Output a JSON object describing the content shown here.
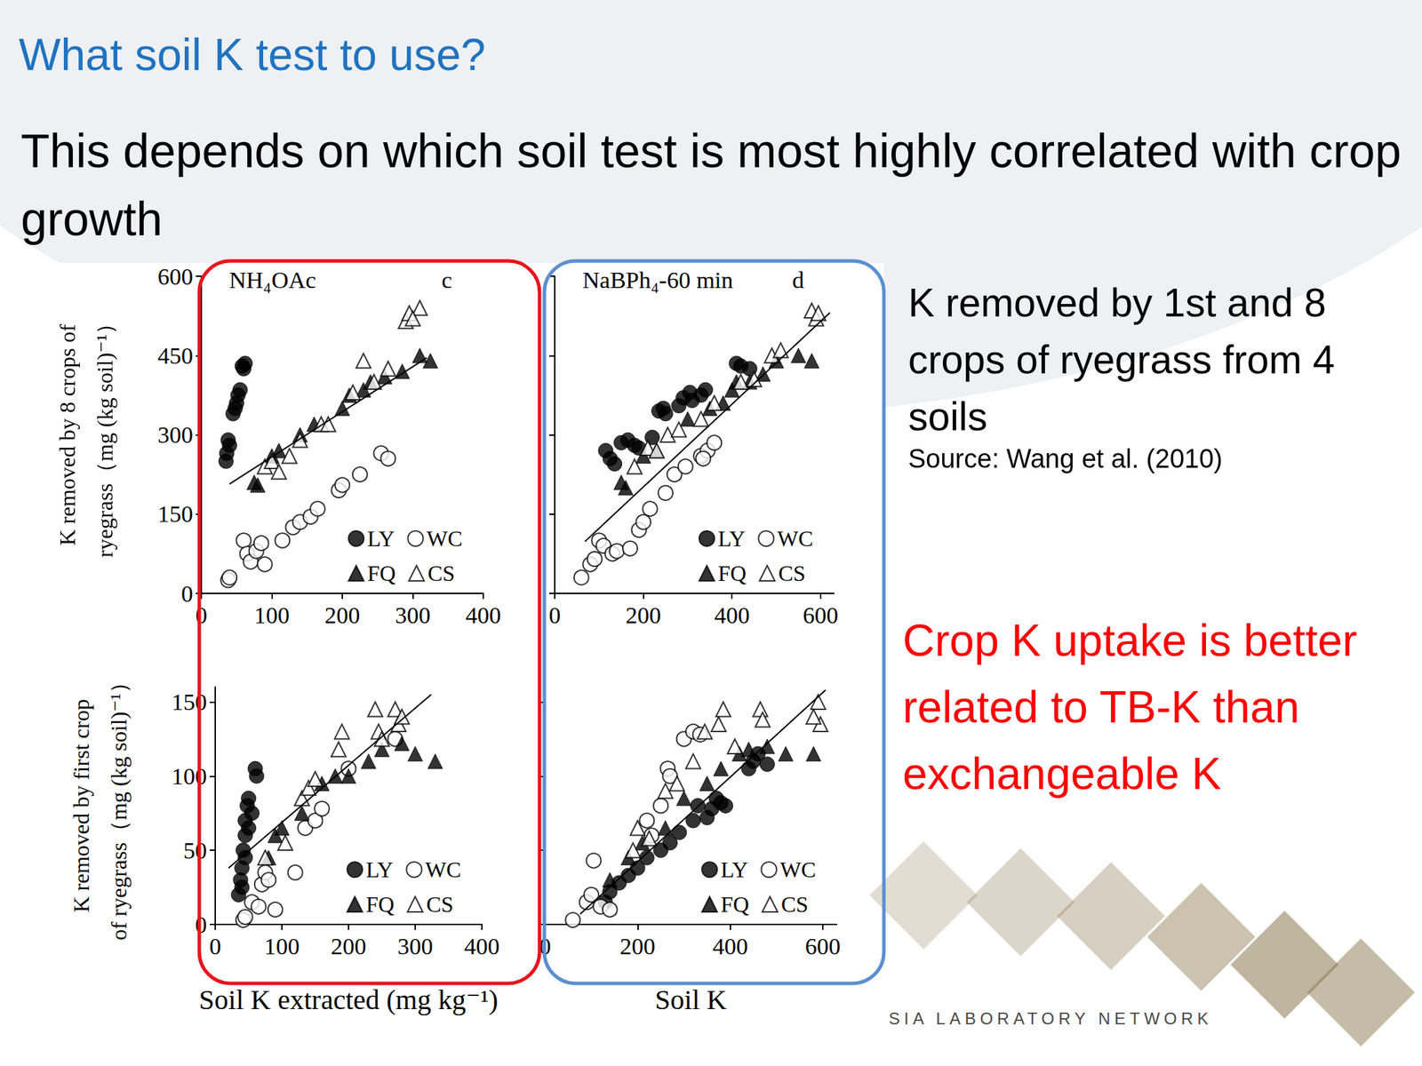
{
  "slide": {
    "title": "What soil K test to use?",
    "subtitle": "This depends on which soil test is most highly correlated with crop growth",
    "notes": [
      "K removed by 1st and 8 crops of ryegrass from 4 soils"
    ],
    "source": "Source: Wang et al. (2010)",
    "conclusion": "Crop K uptake is better related to TB-K than exchangeable K",
    "footer": "SIA LABORATORY NETWORK"
  },
  "chart_data": [
    {
      "type": "scatter",
      "title": "NH₄OAc",
      "panel_label": "c",
      "ylabel": [
        "K removed by 8 crops of",
        "ryegrass（mg (kg soil)⁻¹）"
      ],
      "xlim": [
        0,
        400
      ],
      "xticks": [
        0,
        100,
        200,
        300,
        400
      ],
      "ylim": [
        0,
        600
      ],
      "yticks": [
        0,
        150,
        300,
        450,
        600
      ],
      "grid": false,
      "legend": "lower right",
      "series": [
        {
          "name": "LY",
          "color": "#000000",
          "marker": "circle",
          "x": [
            35,
            36,
            38,
            40,
            45,
            48,
            50,
            52,
            55,
            58,
            62,
            60
          ],
          "values": [
            250,
            265,
            290,
            280,
            340,
            350,
            360,
            375,
            385,
            430,
            435,
            425
          ]
        },
        {
          "name": "WC",
          "color": "#000000",
          "marker": "open_circle",
          "x": [
            38,
            40,
            60,
            65,
            70,
            78,
            85,
            90,
            115,
            130,
            140,
            155,
            165,
            195,
            200,
            225,
            255,
            265
          ],
          "values": [
            25,
            30,
            100,
            75,
            60,
            80,
            95,
            55,
            100,
            125,
            135,
            145,
            160,
            195,
            205,
            225,
            265,
            255
          ]
        },
        {
          "name": "FQ",
          "color": "#000000",
          "marker": "triangle",
          "x": [
            75,
            80,
            100,
            110,
            140,
            160,
            200,
            210,
            230,
            240,
            260,
            285,
            310,
            325
          ],
          "values": [
            210,
            205,
            260,
            270,
            300,
            320,
            350,
            375,
            385,
            400,
            410,
            420,
            450,
            440
          ]
        },
        {
          "name": "CS",
          "color": "#000000",
          "marker": "open_triangle",
          "x": [
            90,
            100,
            110,
            125,
            140,
            170,
            180,
            215,
            230,
            245,
            265,
            290,
            295,
            310,
            300
          ],
          "values": [
            240,
            250,
            230,
            260,
            290,
            320,
            320,
            380,
            440,
            400,
            425,
            515,
            530,
            540,
            520
          ]
        }
      ],
      "trend_line": {
        "x": [
          40,
          320
        ],
        "y": [
          207,
          446
        ]
      }
    },
    {
      "type": "scatter",
      "title": "NaBPh₄-60 min",
      "panel_label": "d",
      "xlim": [
        0,
        630
      ],
      "xticks": [
        0,
        200,
        400,
        600
      ],
      "ylim": [
        0,
        600
      ],
      "yticks": [
        0,
        150,
        300,
        450,
        600
      ],
      "grid": false,
      "legend": "lower right",
      "tick_labels": "x",
      "series": [
        {
          "name": "LY",
          "color": "#000000",
          "marker": "circle",
          "x": [
            115,
            125,
            135,
            150,
            165,
            180,
            190,
            220,
            235,
            245,
            250,
            280,
            290,
            305,
            310,
            330,
            340,
            410,
            420,
            440
          ],
          "values": [
            270,
            255,
            245,
            285,
            290,
            280,
            275,
            295,
            345,
            350,
            340,
            355,
            370,
            380,
            365,
            375,
            385,
            435,
            430,
            425
          ]
        },
        {
          "name": "WC",
          "color": "#000000",
          "marker": "open_circle",
          "x": [
            60,
            80,
            90,
            100,
            110,
            130,
            140,
            170,
            190,
            200,
            215,
            250,
            270,
            295,
            330,
            345,
            360,
            335
          ],
          "values": [
            30,
            55,
            65,
            100,
            90,
            75,
            80,
            85,
            120,
            135,
            160,
            190,
            225,
            240,
            260,
            270,
            285,
            255
          ]
        },
        {
          "name": "FQ",
          "color": "#000000",
          "marker": "triangle",
          "x": [
            150,
            160,
            200,
            230,
            300,
            350,
            380,
            400,
            410,
            440,
            470,
            500,
            550,
            580
          ],
          "values": [
            210,
            200,
            260,
            270,
            330,
            350,
            360,
            385,
            400,
            400,
            415,
            440,
            450,
            440
          ]
        },
        {
          "name": "CS",
          "color": "#000000",
          "marker": "open_triangle",
          "x": [
            180,
            210,
            230,
            255,
            280,
            330,
            360,
            420,
            450,
            490,
            510,
            580,
            590,
            595
          ],
          "values": [
            240,
            275,
            270,
            300,
            310,
            330,
            360,
            400,
            405,
            450,
            460,
            535,
            520,
            530
          ]
        }
      ],
      "trend_line": {
        "x": [
          68,
          621
        ],
        "y": [
          98,
          531
        ]
      }
    },
    {
      "type": "scatter",
      "ylabel": [
        "K removed by first crop",
        "of ryegrass（mg (kg soil)⁻¹）"
      ],
      "xlabel": "Soil K extracted (mg kg⁻¹)",
      "xlim": [
        0,
        400
      ],
      "xticks": [
        0,
        100,
        200,
        300,
        400
      ],
      "ylim": [
        0,
        160
      ],
      "yticks": [
        0,
        50,
        100,
        150
      ],
      "grid": false,
      "legend": "lower right",
      "series": [
        {
          "name": "LY",
          "color": "#000000",
          "marker": "circle",
          "x": [
            35,
            38,
            40,
            42,
            45,
            45,
            48,
            50,
            50,
            55,
            60,
            62,
            40,
            45
          ],
          "values": [
            20,
            30,
            38,
            50,
            60,
            70,
            80,
            85,
            65,
            75,
            105,
            100,
            25,
            45
          ]
        },
        {
          "name": "WC",
          "color": "#000000",
          "marker": "open_circle",
          "x": [
            42,
            45,
            55,
            65,
            70,
            75,
            80,
            90,
            120,
            135,
            150,
            160,
            200,
            270
          ],
          "values": [
            3,
            5,
            15,
            12,
            27,
            35,
            30,
            10,
            35,
            65,
            70,
            78,
            105,
            125
          ]
        },
        {
          "name": "FQ",
          "color": "#000000",
          "marker": "triangle",
          "x": [
            80,
            90,
            100,
            130,
            160,
            180,
            200,
            230,
            250,
            280,
            300,
            330
          ],
          "values": [
            45,
            60,
            65,
            75,
            95,
            100,
            100,
            110,
            118,
            122,
            115,
            110
          ]
        },
        {
          "name": "CS",
          "color": "#000000",
          "marker": "open_triangle",
          "x": [
            75,
            105,
            130,
            140,
            150,
            185,
            190,
            240,
            245,
            250,
            270,
            275,
            280
          ],
          "values": [
            45,
            55,
            85,
            92,
            98,
            118,
            130,
            145,
            130,
            125,
            145,
            135,
            140
          ]
        }
      ],
      "trend_line": {
        "x": [
          20,
          324
        ],
        "y": [
          38,
          155
        ]
      }
    },
    {
      "type": "scatter",
      "xlabel": "Soil K",
      "xlim": [
        0,
        630
      ],
      "xticks": [
        0,
        200,
        400,
        600
      ],
      "ylim": [
        0,
        160
      ],
      "yticks": [
        0,
        50,
        100,
        150
      ],
      "grid": false,
      "legend": "lower right",
      "tick_labels": "x",
      "series": [
        {
          "name": "LY",
          "color": "#000000",
          "marker": "circle",
          "x": [
            130,
            140,
            160,
            180,
            200,
            220,
            250,
            270,
            290,
            320,
            330,
            350,
            360,
            370,
            380,
            390,
            440,
            450,
            480,
            460
          ],
          "values": [
            15,
            22,
            28,
            33,
            38,
            45,
            50,
            55,
            62,
            70,
            80,
            72,
            78,
            85,
            82,
            80,
            105,
            110,
            108,
            115
          ]
        },
        {
          "name": "WC",
          "color": "#000000",
          "marker": "open_circle",
          "x": [
            60,
            90,
            100,
            105,
            120,
            140,
            220,
            230,
            250,
            265,
            270,
            300,
            320,
            335
          ],
          "values": [
            3,
            15,
            20,
            43,
            12,
            10,
            70,
            60,
            80,
            105,
            100,
            125,
            130,
            128
          ]
        },
        {
          "name": "FQ",
          "color": "#000000",
          "marker": "triangle",
          "x": [
            140,
            180,
            210,
            260,
            300,
            350,
            380,
            420,
            440,
            480,
            520,
            580
          ],
          "values": [
            30,
            45,
            55,
            65,
            85,
            95,
            105,
            115,
            118,
            120,
            115,
            115
          ]
        },
        {
          "name": "CS",
          "color": "#000000",
          "marker": "open_triangle",
          "x": [
            190,
            200,
            225,
            260,
            285,
            320,
            345,
            375,
            385,
            410,
            465,
            470,
            590,
            595,
            580
          ],
          "values": [
            50,
            65,
            58,
            90,
            95,
            110,
            130,
            135,
            145,
            120,
            145,
            138,
            150,
            135,
            140
          ]
        }
      ],
      "trend_line": {
        "x": [
          76,
          606
        ],
        "y": [
          7,
          158
        ]
      }
    }
  ]
}
